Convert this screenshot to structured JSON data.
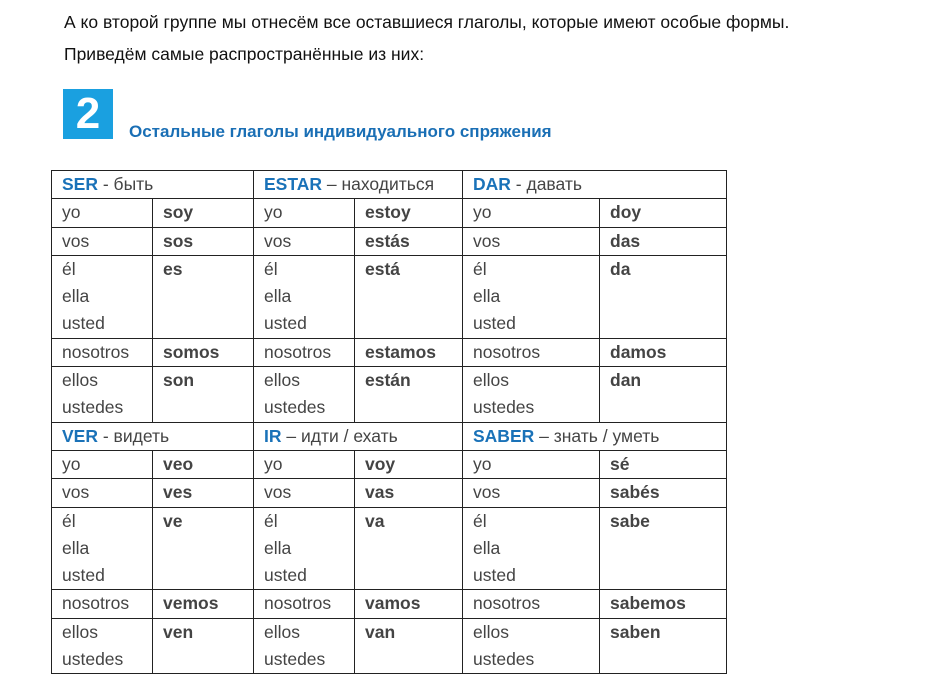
{
  "intro": {
    "line1": "А ко второй группе мы отнесём все оставшиеся глаголы, которые имеют особые формы.",
    "line2": "Приведём самые распространённые из них:"
  },
  "section": {
    "number": "2",
    "title": "Остальные глаголы индивидуального спряжения",
    "badge_color": "#1aa0e0",
    "title_color": "#1a6fb5"
  },
  "blocks": [
    {
      "verbs": [
        {
          "verb": "SER",
          "sep": " - ",
          "meaning": "быть",
          "forms": [
            "soy",
            "sos",
            "es",
            "somos",
            "son"
          ]
        },
        {
          "verb": "ESTAR",
          "sep": " – ",
          "meaning": "находиться",
          "forms": [
            "estoy",
            "estás",
            "está",
            "estamos",
            "están"
          ]
        },
        {
          "verb": "DAR",
          "sep": " - ",
          "meaning": "давать",
          "forms": [
            "doy",
            "das",
            "da",
            "damos",
            "dan"
          ]
        }
      ]
    },
    {
      "verbs": [
        {
          "verb": "VER",
          "sep": " - ",
          "meaning": "видеть",
          "forms": [
            "veo",
            "ves",
            "ve",
            "vemos",
            "ven"
          ]
        },
        {
          "verb": "IR",
          "sep": " – ",
          "meaning": "идти / ехать",
          "forms": [
            "voy",
            "vas",
            "va",
            "vamos",
            "van"
          ]
        },
        {
          "verb": "SABER",
          "sep": " – ",
          "meaning": "знать / уметь",
          "forms": [
            "sé",
            "sabés",
            "sabe",
            "sabemos",
            "saben"
          ]
        }
      ]
    }
  ],
  "pronouns": [
    "yo",
    "vos",
    "él\nella\nusted",
    "nosotros",
    "ellos\nustedes"
  ]
}
